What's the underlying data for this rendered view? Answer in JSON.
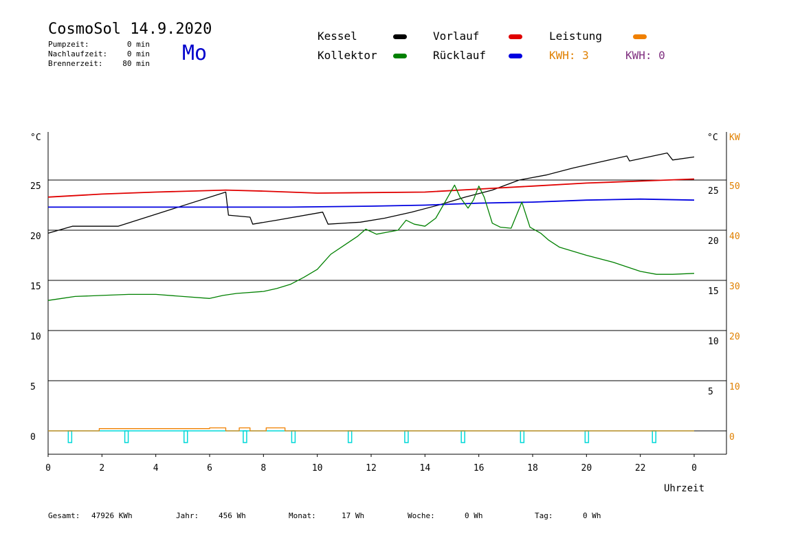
{
  "header": {
    "title": "CosmoSol 14.9.2020",
    "weekday": "Mo",
    "stats": [
      {
        "label": "Pumpzeit:",
        "value": "0 min"
      },
      {
        "label": "Nachlaufzeit:",
        "value": "0 min"
      },
      {
        "label": "Brennerzeit:",
        "value": "80 min"
      }
    ]
  },
  "legend": {
    "kessel": {
      "label": "Kessel",
      "color": "#000000"
    },
    "kollektor": {
      "label": "Kollektor",
      "color": "#008000"
    },
    "vorlauf": {
      "label": "Vorlauf",
      "color": "#e00000"
    },
    "ruecklauf": {
      "label": "Rücklauf",
      "color": "#0000e0"
    },
    "leistung": {
      "label": "Leistung",
      "color": "#f08000"
    },
    "kwh_orange": "KWH: 3",
    "kwh_purple": "KWH: 0"
  },
  "footer": {
    "gesamt_label": "Gesamt:",
    "gesamt_value": "47926 KWh",
    "jahr_label": "Jahr:",
    "jahr_value": "456 Wh",
    "monat_label": "Monat:",
    "monat_value": "17 Wh",
    "woche_label": "Woche:",
    "woche_value": "0 Wh",
    "tag_label": "Tag:",
    "tag_value": "0 Wh"
  },
  "chart_data": {
    "type": "line",
    "title": "CosmoSol 14.9.2020",
    "xlabel": "Uhrzeit",
    "ylabel_left": "°C",
    "ylabel_right_temp": "°C",
    "ylabel_right_power": "KW",
    "xlim": [
      0,
      24
    ],
    "ylim": [
      -1.5,
      28.5
    ],
    "x_ticks": [
      "0",
      "2",
      "4",
      "6",
      "8",
      "10",
      "12",
      "14",
      "16",
      "18",
      "20",
      "22",
      "0"
    ],
    "y_ticks_left": [
      0,
      5,
      10,
      15,
      20,
      25
    ],
    "y_ticks_right_temp": [
      5,
      10,
      15,
      20,
      25
    ],
    "y_ticks_right_power": [
      0,
      10,
      20,
      30,
      40,
      50
    ],
    "grid": true,
    "series": [
      {
        "name": "Kessel",
        "color": "#000000",
        "points": [
          [
            0,
            19.7
          ],
          [
            0.9,
            20.4
          ],
          [
            2.6,
            20.4
          ],
          [
            6.6,
            23.8
          ],
          [
            6.7,
            21.5
          ],
          [
            7.5,
            21.3
          ],
          [
            7.6,
            20.6
          ],
          [
            8.5,
            21.0
          ],
          [
            10.2,
            21.8
          ],
          [
            10.4,
            20.6
          ],
          [
            11.6,
            20.8
          ],
          [
            12.5,
            21.2
          ],
          [
            13.5,
            21.8
          ],
          [
            14.5,
            22.5
          ],
          [
            15.5,
            23.3
          ],
          [
            16.5,
            24.0
          ],
          [
            17.5,
            25.0
          ],
          [
            18.5,
            25.5
          ],
          [
            19.5,
            26.2
          ],
          [
            20.5,
            26.8
          ],
          [
            21.5,
            27.4
          ],
          [
            21.6,
            26.9
          ],
          [
            23.0,
            27.7
          ],
          [
            23.2,
            27.0
          ],
          [
            24,
            27.3
          ]
        ]
      },
      {
        "name": "Vorlauf",
        "color": "#e00000",
        "points": [
          [
            0,
            23.3
          ],
          [
            2,
            23.6
          ],
          [
            4,
            23.8
          ],
          [
            6.6,
            24.0
          ],
          [
            8,
            23.9
          ],
          [
            10,
            23.7
          ],
          [
            14,
            23.8
          ],
          [
            16,
            24.1
          ],
          [
            18,
            24.4
          ],
          [
            20,
            24.7
          ],
          [
            22,
            24.9
          ],
          [
            24,
            25.1
          ]
        ]
      },
      {
        "name": "Rücklauf",
        "color": "#0000e0",
        "points": [
          [
            0,
            22.3
          ],
          [
            3,
            22.3
          ],
          [
            6,
            22.3
          ],
          [
            9,
            22.3
          ],
          [
            12,
            22.4
          ],
          [
            14,
            22.5
          ],
          [
            16,
            22.7
          ],
          [
            18,
            22.8
          ],
          [
            20,
            23.0
          ],
          [
            22,
            23.1
          ],
          [
            24,
            23.0
          ]
        ]
      },
      {
        "name": "Kollektor",
        "color": "#008000",
        "points": [
          [
            0,
            13.0
          ],
          [
            0.5,
            13.2
          ],
          [
            1,
            13.4
          ],
          [
            2,
            13.5
          ],
          [
            3,
            13.6
          ],
          [
            4,
            13.6
          ],
          [
            5,
            13.4
          ],
          [
            6,
            13.2
          ],
          [
            6.5,
            13.5
          ],
          [
            7,
            13.7
          ],
          [
            8,
            13.9
          ],
          [
            8.5,
            14.2
          ],
          [
            9,
            14.6
          ],
          [
            9.5,
            15.3
          ],
          [
            10,
            16.1
          ],
          [
            10.5,
            17.6
          ],
          [
            11,
            18.5
          ],
          [
            11.5,
            19.4
          ],
          [
            11.8,
            20.1
          ],
          [
            12.2,
            19.6
          ],
          [
            12.6,
            19.8
          ],
          [
            13,
            20.0
          ],
          [
            13.3,
            21.0
          ],
          [
            13.6,
            20.6
          ],
          [
            14,
            20.4
          ],
          [
            14.4,
            21.2
          ],
          [
            14.7,
            22.6
          ],
          [
            15.1,
            24.5
          ],
          [
            15.3,
            23.3
          ],
          [
            15.6,
            22.2
          ],
          [
            15.8,
            23.0
          ],
          [
            16.0,
            24.4
          ],
          [
            16.2,
            23.3
          ],
          [
            16.5,
            20.7
          ],
          [
            16.8,
            20.3
          ],
          [
            17.2,
            20.2
          ],
          [
            17.6,
            22.8
          ],
          [
            17.9,
            20.3
          ],
          [
            18.3,
            19.7
          ],
          [
            18.6,
            19.0
          ],
          [
            19,
            18.3
          ],
          [
            20,
            17.5
          ],
          [
            21,
            16.8
          ],
          [
            22,
            15.9
          ],
          [
            22.6,
            15.6
          ],
          [
            23.2,
            15.6
          ],
          [
            24,
            15.7
          ]
        ]
      },
      {
        "name": "Leistung",
        "color": "#f08000",
        "points": [
          [
            0,
            0
          ],
          [
            1.9,
            0
          ],
          [
            1.9,
            0.3
          ],
          [
            6.0,
            0.3
          ],
          [
            6.0,
            0.4
          ],
          [
            6.6,
            0.4
          ],
          [
            6.6,
            0
          ],
          [
            7.1,
            0
          ],
          [
            7.1,
            0.4
          ],
          [
            7.5,
            0.4
          ],
          [
            7.5,
            0
          ],
          [
            8.1,
            0
          ],
          [
            8.1,
            0.4
          ],
          [
            8.8,
            0.4
          ],
          [
            8.8,
            0
          ],
          [
            24,
            0
          ]
        ]
      }
    ],
    "pulses": {
      "color": "#00d8d8",
      "x": [
        0.8,
        2.9,
        5.1,
        7.3,
        9.1,
        11.2,
        13.3,
        15.4,
        17.6,
        20.0,
        22.5
      ]
    }
  }
}
